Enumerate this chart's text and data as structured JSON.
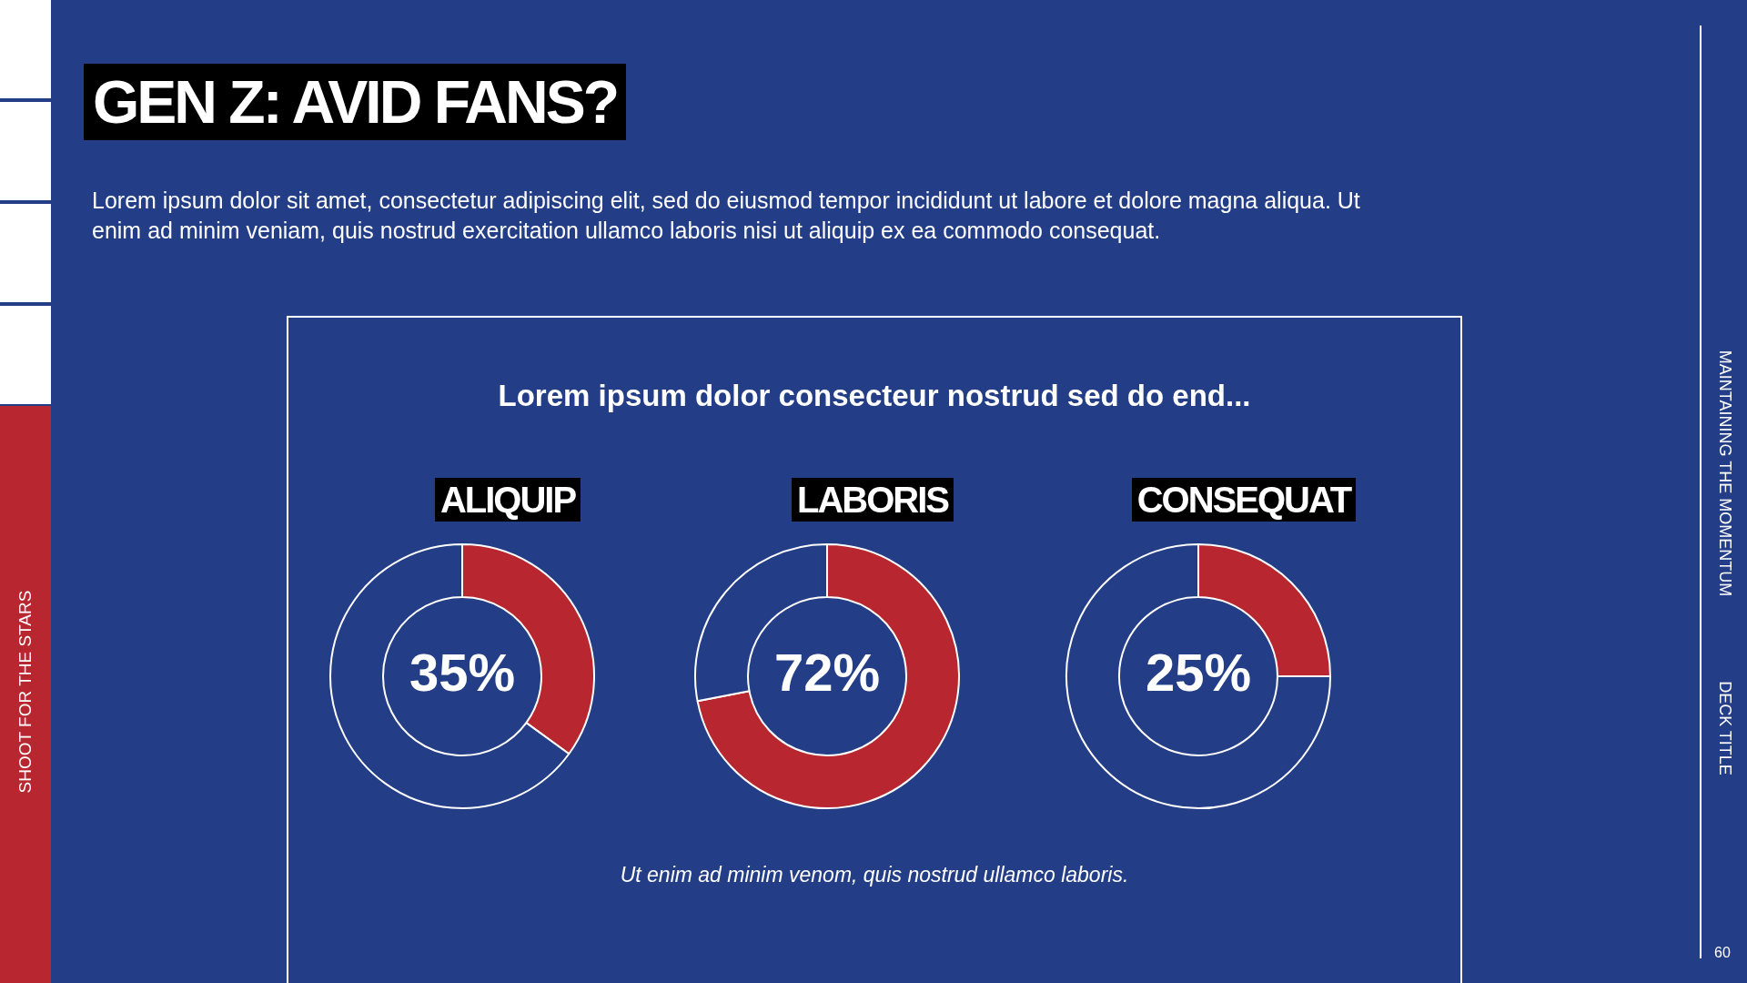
{
  "chart_data": [
    {
      "type": "donut",
      "title": "ALIQUIP",
      "categories": [
        null,
        null
      ],
      "values": [
        35,
        65
      ],
      "colors": [
        "#b8272f",
        "#233e86"
      ],
      "value_labels": [
        "35%",
        null
      ],
      "annotations": [
        "GEN Z: AVID FANS?",
        "Lorem ipsum dolor sit amet, consectetur adipiscing elit, sed do eiusmod tempor incididunt ut labore et dolore magna aliqua. Ut enim ad minim veniam, quis nostrud exercitation ullamco laboris nisi ut aliquip ex ea commodo consequat.",
        "Lorem ipsum dolor consecteur nostrud sed do end...",
        "Ut enim ad minim venom, quis nostrud ullamco laboris.",
        "SHOOT FOR THE STARS",
        "MAINTAINING THE MOMENTUM",
        "DECK TITLE",
        "60"
      ]
    },
    {
      "type": "donut",
      "title": "LABORIS",
      "categories": [
        null,
        null
      ],
      "values": [
        72,
        28
      ],
      "colors": [
        "#b8272f",
        "#233e86"
      ],
      "value_labels": [
        "72%",
        null
      ]
    },
    {
      "type": "donut",
      "title": "CONSEQUAT",
      "categories": [
        null,
        null
      ],
      "values": [
        25,
        75
      ],
      "colors": [
        "#b8272f",
        "#233e86"
      ],
      "value_labels": [
        "25%",
        null
      ]
    }
  ]
}
